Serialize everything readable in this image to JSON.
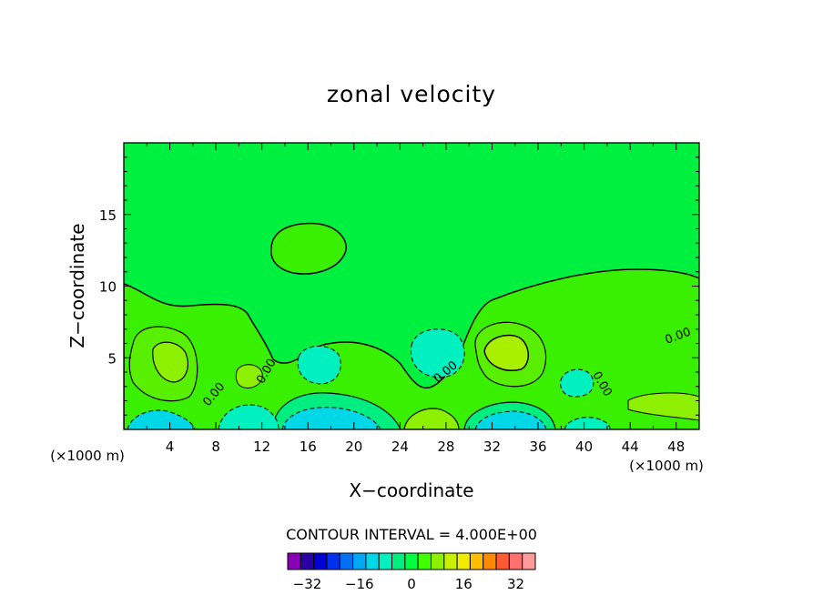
{
  "chart_data": {
    "type": "contour",
    "title": "zonal velocity",
    "xlabel": "X−coordinate",
    "ylabel": "Z−coordinate",
    "x_units": "(×1000 m)",
    "y_units": "(×1000 m)",
    "xlim": [
      0,
      50
    ],
    "ylim": [
      0,
      20
    ],
    "x_ticks": [
      4,
      8,
      12,
      16,
      20,
      24,
      28,
      32,
      36,
      40,
      44,
      48
    ],
    "y_ticks": [
      5,
      10,
      15
    ],
    "contour_interval_label": "CONTOUR INTERVAL = 4.000E+00",
    "zero_contour_label": "0.00",
    "colorbar": {
      "levels": [
        -36,
        -32,
        -28,
        -24,
        -20,
        -16,
        -12,
        -8,
        -4,
        0,
        4,
        8,
        12,
        16,
        20,
        24,
        28,
        32,
        36
      ],
      "tick_labels": [
        "−32",
        "−16",
        "0",
        "16",
        "32"
      ],
      "tick_values": [
        -32,
        -16,
        0,
        16,
        32
      ],
      "colors": [
        "#8a00b8",
        "#2a00a8",
        "#0000d6",
        "#0030f0",
        "#0070f5",
        "#00a8f5",
        "#00d8e8",
        "#00f0c0",
        "#00ee80",
        "#00ff40",
        "#40ff00",
        "#8cf000",
        "#c8f000",
        "#f0ec00",
        "#ffbe00",
        "#ff8a00",
        "#ff5a30",
        "#ff7070",
        "#ff9a9a"
      ]
    },
    "regions": [
      {
        "desc": "upper background",
        "value": 2,
        "color": "#00f040"
      },
      {
        "desc": "lower band",
        "value": 6,
        "color": "#38f000"
      },
      {
        "desc": "upper positive patch near x=16,z=12.5",
        "value": 6,
        "color": "#38f000"
      },
      {
        "desc": "positive maximum near x=33,z=5",
        "value": 10,
        "color": "#a8f000"
      },
      {
        "desc": "positive maximum near x=5,z=4.5",
        "value": 10,
        "color": "#8cf000"
      },
      {
        "desc": "negative minimum near x=16,z=0.5",
        "value": -10,
        "color": "#00d8e8"
      },
      {
        "desc": "negative minimum near x=33,z=0.5",
        "value": -10,
        "color": "#00d8e8"
      },
      {
        "desc": "negative minimum near x=27,z=4.5",
        "value": -6,
        "color": "#00f0c0"
      }
    ]
  }
}
